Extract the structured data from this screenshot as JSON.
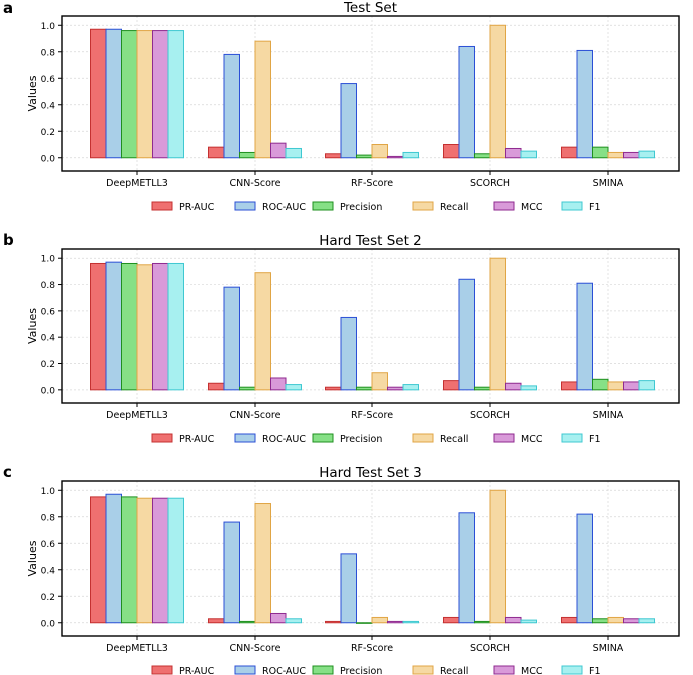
{
  "legend_labels": [
    "PR-AUC",
    "ROC-AUC",
    "Precision",
    "Recall",
    "MCC",
    "F1"
  ],
  "series_colors": {
    "PR-AUC": {
      "fill": "#ef7070",
      "stroke": "#c43131"
    },
    "ROC-AUC": {
      "fill": "#a9cfe8",
      "stroke": "#2b4fd6"
    },
    "Precision": {
      "fill": "#86e086",
      "stroke": "#1f8f1f"
    },
    "Recall": {
      "fill": "#f6d9a3",
      "stroke": "#e0a545"
    },
    "MCC": {
      "fill": "#d99ad9",
      "stroke": "#8f2a8f"
    },
    "F1": {
      "fill": "#a7f0f0",
      "stroke": "#3fc8d1"
    }
  },
  "chart_data": [
    {
      "panel_label": "a",
      "type": "bar",
      "title": "Test Set",
      "xlabel": "",
      "ylabel": "Values",
      "ylim": [
        -0.1,
        1.07
      ],
      "yticks": [
        "0.0",
        "0.2",
        "0.4",
        "0.6",
        "0.8",
        "1.0"
      ],
      "grid": true,
      "legend_position": "below",
      "categories": [
        "DeepMETLL3",
        "CNN-Score",
        "RF-Score",
        "SCORCH",
        "SMINA"
      ],
      "series": [
        {
          "name": "PR-AUC",
          "values": [
            0.97,
            0.08,
            0.03,
            0.1,
            0.08
          ]
        },
        {
          "name": "ROC-AUC",
          "values": [
            0.97,
            0.78,
            0.56,
            0.84,
            0.81
          ]
        },
        {
          "name": "Precision",
          "values": [
            0.96,
            0.04,
            0.02,
            0.03,
            0.08
          ]
        },
        {
          "name": "Recall",
          "values": [
            0.96,
            0.88,
            0.1,
            1.0,
            0.04
          ]
        },
        {
          "name": "MCC",
          "values": [
            0.96,
            0.11,
            0.01,
            0.07,
            0.04
          ]
        },
        {
          "name": "F1",
          "values": [
            0.96,
            0.07,
            0.04,
            0.05,
            0.05
          ]
        }
      ]
    },
    {
      "panel_label": "b",
      "type": "bar",
      "title": "Hard Test Set 2",
      "xlabel": "",
      "ylabel": "Values",
      "ylim": [
        -0.1,
        1.07
      ],
      "yticks": [
        "0.0",
        "0.2",
        "0.4",
        "0.6",
        "0.8",
        "1.0"
      ],
      "grid": true,
      "legend_position": "below",
      "categories": [
        "DeepMETLL3",
        "CNN-Score",
        "RF-Score",
        "SCORCH",
        "SMINA"
      ],
      "series": [
        {
          "name": "PR-AUC",
          "values": [
            0.96,
            0.05,
            0.02,
            0.07,
            0.06
          ]
        },
        {
          "name": "ROC-AUC",
          "values": [
            0.97,
            0.78,
            0.55,
            0.84,
            0.81
          ]
        },
        {
          "name": "Precision",
          "values": [
            0.96,
            0.02,
            0.02,
            0.02,
            0.08
          ]
        },
        {
          "name": "Recall",
          "values": [
            0.95,
            0.89,
            0.13,
            1.0,
            0.06
          ]
        },
        {
          "name": "MCC",
          "values": [
            0.96,
            0.09,
            0.02,
            0.05,
            0.06
          ]
        },
        {
          "name": "F1",
          "values": [
            0.96,
            0.04,
            0.04,
            0.03,
            0.07
          ]
        }
      ]
    },
    {
      "panel_label": "c",
      "type": "bar",
      "title": "Hard Test Set 3",
      "xlabel": "",
      "ylabel": "Values",
      "ylim": [
        -0.1,
        1.07
      ],
      "yticks": [
        "0.0",
        "0.2",
        "0.4",
        "0.6",
        "0.8",
        "1.0"
      ],
      "grid": true,
      "legend_position": "below",
      "categories": [
        "DeepMETLL3",
        "CNN-Score",
        "RF-Score",
        "SCORCH",
        "SMINA"
      ],
      "series": [
        {
          "name": "PR-AUC",
          "values": [
            0.95,
            0.03,
            0.01,
            0.04,
            0.04
          ]
        },
        {
          "name": "ROC-AUC",
          "values": [
            0.97,
            0.76,
            0.52,
            0.83,
            0.82
          ]
        },
        {
          "name": "Precision",
          "values": [
            0.95,
            0.01,
            0.0,
            0.01,
            0.03
          ]
        },
        {
          "name": "Recall",
          "values": [
            0.94,
            0.9,
            0.04,
            1.0,
            0.04
          ]
        },
        {
          "name": "MCC",
          "values": [
            0.94,
            0.07,
            0.01,
            0.04,
            0.03
          ]
        },
        {
          "name": "F1",
          "values": [
            0.94,
            0.03,
            0.01,
            0.02,
            0.03
          ]
        }
      ]
    }
  ]
}
